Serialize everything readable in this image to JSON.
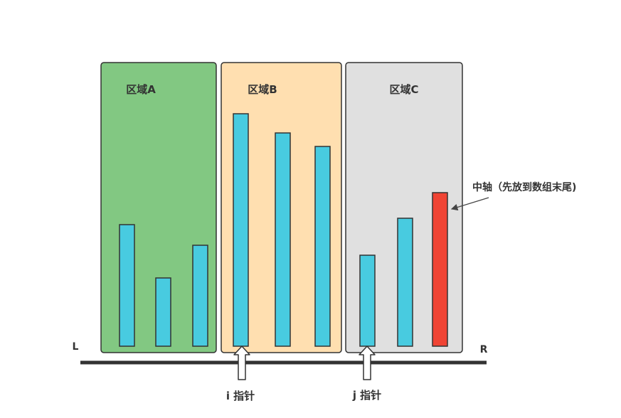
{
  "regions": [
    {
      "label": "区域A",
      "color": "#82c882"
    },
    {
      "label": "区域B",
      "color": "#ffdfb0"
    },
    {
      "label": "区域C",
      "color": "#e0e0e0"
    }
  ],
  "bars": [
    {
      "region": "A",
      "value": 171,
      "role": "element"
    },
    {
      "region": "A",
      "value": 96,
      "role": "element"
    },
    {
      "region": "A",
      "value": 142,
      "role": "element"
    },
    {
      "region": "B",
      "value": 327,
      "role": "element"
    },
    {
      "region": "B",
      "value": 300,
      "role": "element"
    },
    {
      "region": "B",
      "value": 281,
      "role": "element"
    },
    {
      "region": "C",
      "value": 128,
      "role": "element"
    },
    {
      "region": "C",
      "value": 180,
      "role": "element"
    },
    {
      "region": "C",
      "value": 216,
      "role": "pivot"
    }
  ],
  "colors": {
    "bar": "#48cbe0",
    "pivot": "#f04434",
    "outline": "#333333",
    "axis": "#333333"
  },
  "axis": {
    "left_label": "L",
    "right_label": "R"
  },
  "pointers": {
    "i_label": "i 指针",
    "j_label": "j 指针"
  },
  "pivot_annotation": "中轴（先放到数组末尾)"
}
